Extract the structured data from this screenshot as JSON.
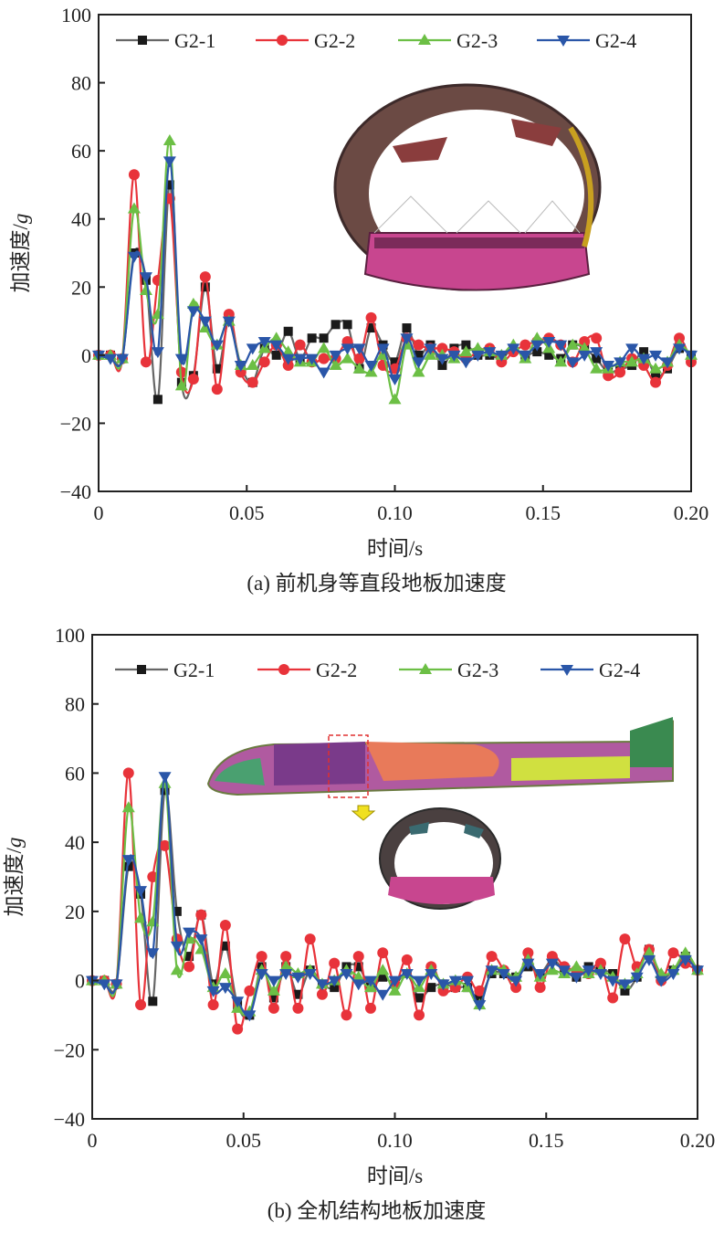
{
  "figure": {
    "captions": [
      "(a) 前机身等直段地板加速度",
      "(b) 全机结构地板加速度"
    ]
  },
  "chart_data": [
    {
      "type": "line",
      "title": "(a) 前机身等直段地板加速度",
      "xlabel": "时间/s",
      "ylabel": "加速度/",
      "ylabel_unit": "g",
      "xlim": [
        0,
        0.2
      ],
      "ylim": [
        -40,
        100
      ],
      "xticks": [
        0,
        0.05,
        0.1,
        0.15,
        0.2
      ],
      "xtick_labels": [
        "0",
        "0.05",
        "0.10",
        "0.15",
        "0.20"
      ],
      "yticks": [
        -40,
        -20,
        0,
        20,
        40,
        60,
        80,
        100
      ],
      "ytick_labels": [
        "−40",
        "−20",
        "0",
        "20",
        "40",
        "60",
        "80",
        "100"
      ],
      "legend_position": "top",
      "x_step": 0.004,
      "series": [
        {
          "name": "G2-1",
          "color": "#666666",
          "marker": "square",
          "marker_color": "#1a1a1a",
          "values": [
            0,
            0,
            -1,
            30,
            22,
            -13,
            50,
            -8,
            -6,
            20,
            -4,
            10,
            -3,
            -8,
            2,
            0,
            7,
            -1,
            5,
            5,
            9,
            9,
            -4,
            8,
            3,
            -2,
            8,
            0,
            3,
            -3,
            2,
            3,
            0,
            0,
            -1,
            2,
            0,
            1,
            0,
            -1,
            3,
            2,
            -1,
            -5,
            -4,
            -3,
            1,
            -6,
            -4,
            2,
            0
          ]
        },
        {
          "name": "G2-2",
          "color": "#e8333a",
          "marker": "circle",
          "marker_color": "#e8333a",
          "values": [
            0,
            0,
            -1,
            53,
            -2,
            22,
            46,
            -5,
            -7,
            23,
            -10,
            12,
            -5,
            -8,
            -2,
            3,
            -3,
            3,
            -2,
            -1,
            -1,
            4,
            -1,
            11,
            -3,
            -4,
            5,
            3,
            2,
            2,
            1,
            -1,
            1,
            2,
            -2,
            1,
            3,
            4,
            5,
            3,
            -2,
            4,
            5,
            -6,
            -5,
            -1,
            -3,
            -8,
            -3,
            5,
            -2
          ]
        },
        {
          "name": "G2-3",
          "color": "#6cbf45",
          "marker": "triangle-up",
          "marker_color": "#6cbf45",
          "values": [
            0,
            0,
            -1,
            43,
            19,
            12,
            63,
            -9,
            15,
            8,
            3,
            10,
            -3,
            -3,
            2,
            5,
            1,
            -2,
            -2,
            2,
            -3,
            -1,
            -4,
            -5,
            0,
            -13,
            3,
            -5,
            0,
            0,
            -1,
            1,
            2,
            1,
            0,
            3,
            -1,
            5,
            2,
            -2,
            3,
            2,
            -4,
            -4,
            -2,
            -2,
            -1,
            -4,
            -2,
            3,
            0
          ]
        },
        {
          "name": "G2-4",
          "color": "#2a56a8",
          "marker": "triangle-down",
          "marker_color": "#2a56a8",
          "values": [
            0,
            -1,
            -1,
            29,
            23,
            1,
            57,
            -1,
            13,
            10,
            3,
            10,
            -3,
            2,
            4,
            3,
            -1,
            -1,
            -1,
            -5,
            0,
            2,
            2,
            -3,
            2,
            -7,
            5,
            -2,
            2,
            -1,
            0,
            -2,
            0,
            1,
            0,
            2,
            0,
            3,
            4,
            3,
            -2,
            0,
            1,
            -3,
            -2,
            2,
            -1,
            0,
            -2,
            2,
            0
          ]
        }
      ]
    },
    {
      "type": "line",
      "title": "(b) 全机结构地板加速度",
      "xlabel": "时间/s",
      "ylabel": "加速度/",
      "ylabel_unit": "g",
      "xlim": [
        0,
        0.2
      ],
      "ylim": [
        -40,
        100
      ],
      "xticks": [
        0,
        0.05,
        0.1,
        0.15,
        0.2
      ],
      "xtick_labels": [
        "0",
        "0.05",
        "0.10",
        "0.15",
        "0.20"
      ],
      "yticks": [
        -40,
        -20,
        0,
        20,
        40,
        60,
        80,
        100
      ],
      "ytick_labels": [
        "−40",
        "−20",
        "0",
        "20",
        "40",
        "60",
        "80",
        "100"
      ],
      "legend_position": "top",
      "x_step": 0.004,
      "series": [
        {
          "name": "G2-1",
          "color": "#666666",
          "marker": "square",
          "marker_color": "#1a1a1a",
          "values": [
            0,
            0,
            -1,
            33,
            25,
            -6,
            55,
            20,
            7,
            19,
            -1,
            10,
            -7,
            -10,
            4,
            -5,
            4,
            -4,
            3,
            -1,
            -2,
            4,
            4,
            -2,
            1,
            -1,
            2,
            -5,
            -2,
            -1,
            -2,
            -2,
            -5,
            2,
            2,
            1,
            4,
            2,
            6,
            3,
            1,
            4,
            3,
            2,
            -3,
            1,
            9,
            1,
            3,
            7,
            3
          ]
        },
        {
          "name": "G2-2",
          "color": "#e8333a",
          "marker": "circle",
          "marker_color": "#e8333a",
          "values": [
            0,
            0,
            -1,
            60,
            -7,
            30,
            39,
            12,
            4,
            19,
            -7,
            16,
            -14,
            -3,
            7,
            -8,
            7,
            -8,
            12,
            -4,
            5,
            -10,
            7,
            -8,
            8,
            -1,
            6,
            -10,
            4,
            -3,
            -2,
            1,
            -3,
            7,
            3,
            -2,
            8,
            -2,
            7,
            4,
            3,
            2,
            5,
            -5,
            12,
            4,
            9,
            0,
            8,
            5,
            3
          ]
        },
        {
          "name": "G2-3",
          "color": "#6cbf45",
          "marker": "triangle-up",
          "marker_color": "#6cbf45",
          "values": [
            0,
            0,
            -1,
            50,
            18,
            17,
            57,
            3,
            12,
            9,
            -2,
            2,
            -8,
            -9,
            3,
            -3,
            4,
            2,
            3,
            -1,
            0,
            3,
            1,
            -2,
            3,
            -3,
            2,
            -2,
            3,
            -1,
            0,
            -2,
            -7,
            3,
            3,
            1,
            6,
            1,
            3,
            2,
            4,
            2,
            3,
            1,
            -1,
            2,
            8,
            2,
            3,
            8,
            3
          ]
        },
        {
          "name": "G2-4",
          "color": "#2a56a8",
          "marker": "triangle-down",
          "marker_color": "#2a56a8",
          "values": [
            0,
            -1,
            -1,
            35,
            26,
            8,
            59,
            10,
            14,
            12,
            -3,
            -2,
            -6,
            -10,
            2,
            0,
            2,
            1,
            2,
            -1,
            0,
            2,
            -1,
            0,
            -4,
            0,
            2,
            0,
            2,
            -1,
            0,
            0,
            -7,
            3,
            2,
            0,
            5,
            2,
            5,
            3,
            1,
            3,
            2,
            0,
            -1,
            1,
            6,
            0,
            2,
            6,
            3
          ]
        }
      ]
    }
  ]
}
